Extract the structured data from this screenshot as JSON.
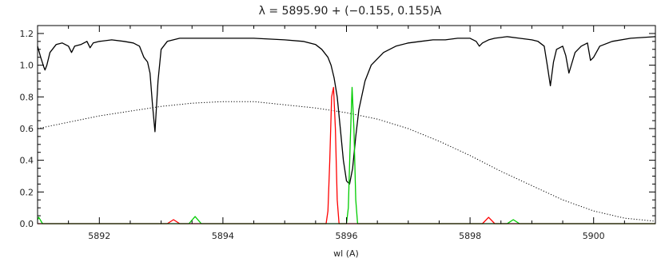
{
  "chart_data": {
    "type": "line",
    "title": "λ = 5895.90 + (−0.155,  0.155)A",
    "xlabel": "wl (A)",
    "ylabel": "",
    "xlim": [
      5891.0,
      5901.0
    ],
    "ylim": [
      0.0,
      1.25
    ],
    "x_ticks": [
      5892,
      5894,
      5896,
      5898,
      5900
    ],
    "x_tick_labels": [
      "5892",
      "5894",
      "5896",
      "5898",
      "5900"
    ],
    "y_ticks": [
      0.0,
      0.2,
      0.4,
      0.6,
      0.8,
      1.0,
      1.2
    ],
    "y_tick_labels": [
      "0.0",
      "0.2",
      "0.4",
      "0.6",
      "0.8",
      "1.0",
      "1.2"
    ],
    "grid": false,
    "legend": "none",
    "series": [
      {
        "color": "#000000",
        "style": "solid",
        "x": [
          5891.0,
          5891.05,
          5891.1,
          5891.12,
          5891.15,
          5891.2,
          5891.3,
          5891.4,
          5891.5,
          5891.55,
          5891.6,
          5891.7,
          5891.8,
          5891.85,
          5891.9,
          5892.0,
          5892.2,
          5892.4,
          5892.55,
          5892.65,
          5892.72,
          5892.78,
          5892.82,
          5892.86,
          5892.9,
          5892.95,
          5893.0,
          5893.1,
          5893.3,
          5893.6,
          5894.0,
          5894.5,
          5895.0,
          5895.3,
          5895.5,
          5895.6,
          5895.7,
          5895.75,
          5895.8,
          5895.85,
          5895.9,
          5895.95,
          5896.0,
          5896.05,
          5896.1,
          5896.15,
          5896.2,
          5896.3,
          5896.4,
          5896.6,
          5896.8,
          5897.0,
          5897.2,
          5897.4,
          5897.6,
          5897.8,
          5898.0,
          5898.1,
          5898.15,
          5898.2,
          5898.3,
          5898.4,
          5898.6,
          5898.8,
          5899.0,
          5899.1,
          5899.2,
          5899.25,
          5899.3,
          5899.35,
          5899.4,
          5899.5,
          5899.55,
          5899.6,
          5899.7,
          5899.8,
          5899.9,
          5899.95,
          5900.0,
          5900.1,
          5900.3,
          5900.6,
          5901.0
        ],
        "y": [
          1.12,
          1.05,
          0.99,
          0.97,
          1.0,
          1.08,
          1.13,
          1.14,
          1.12,
          1.08,
          1.12,
          1.13,
          1.15,
          1.11,
          1.14,
          1.15,
          1.16,
          1.15,
          1.14,
          1.12,
          1.05,
          1.02,
          0.95,
          0.75,
          0.58,
          0.9,
          1.1,
          1.15,
          1.17,
          1.17,
          1.17,
          1.17,
          1.16,
          1.15,
          1.13,
          1.1,
          1.05,
          1.0,
          0.92,
          0.8,
          0.6,
          0.4,
          0.27,
          0.25,
          0.35,
          0.55,
          0.72,
          0.9,
          1.0,
          1.08,
          1.12,
          1.14,
          1.15,
          1.16,
          1.16,
          1.17,
          1.17,
          1.15,
          1.12,
          1.14,
          1.16,
          1.17,
          1.18,
          1.17,
          1.16,
          1.15,
          1.12,
          1.0,
          0.87,
          1.02,
          1.1,
          1.12,
          1.06,
          0.95,
          1.08,
          1.12,
          1.14,
          1.03,
          1.05,
          1.12,
          1.15,
          1.17,
          1.18
        ]
      },
      {
        "color": "#000000",
        "style": "dotted",
        "x": [
          5891.0,
          5891.5,
          5892.0,
          5892.5,
          5893.0,
          5893.5,
          5894.0,
          5894.5,
          5895.0,
          5895.5,
          5896.0,
          5896.5,
          5897.0,
          5897.5,
          5898.0,
          5898.5,
          5899.0,
          5899.5,
          5900.0,
          5900.5,
          5901.0
        ],
        "y": [
          0.6,
          0.64,
          0.68,
          0.71,
          0.74,
          0.76,
          0.77,
          0.77,
          0.75,
          0.73,
          0.7,
          0.66,
          0.6,
          0.52,
          0.43,
          0.33,
          0.24,
          0.15,
          0.08,
          0.035,
          0.015
        ]
      },
      {
        "color": "#ff0000",
        "style": "solid",
        "x": [
          5891.0,
          5893.1,
          5893.2,
          5893.3,
          5895.67,
          5895.7,
          5895.73,
          5895.76,
          5895.79,
          5895.82,
          5895.85,
          5895.88,
          5898.2,
          5898.3,
          5898.4,
          5901.0
        ],
        "y": [
          0.0,
          0.0,
          0.025,
          0.0,
          0.0,
          0.08,
          0.4,
          0.8,
          0.86,
          0.6,
          0.15,
          0.0,
          0.0,
          0.04,
          0.0,
          0.0
        ]
      },
      {
        "color": "#00cc00",
        "style": "solid",
        "x": [
          5891.0,
          5891.02,
          5891.08,
          5893.45,
          5893.55,
          5893.65,
          5896.0,
          5896.03,
          5896.06,
          5896.09,
          5896.12,
          5896.15,
          5896.18,
          5898.6,
          5898.7,
          5898.8,
          5901.0
        ],
        "y": [
          0.025,
          0.04,
          0.0,
          0.0,
          0.045,
          0.0,
          0.0,
          0.1,
          0.5,
          0.86,
          0.6,
          0.15,
          0.0,
          0.0,
          0.025,
          0.0,
          0.0
        ]
      }
    ]
  }
}
